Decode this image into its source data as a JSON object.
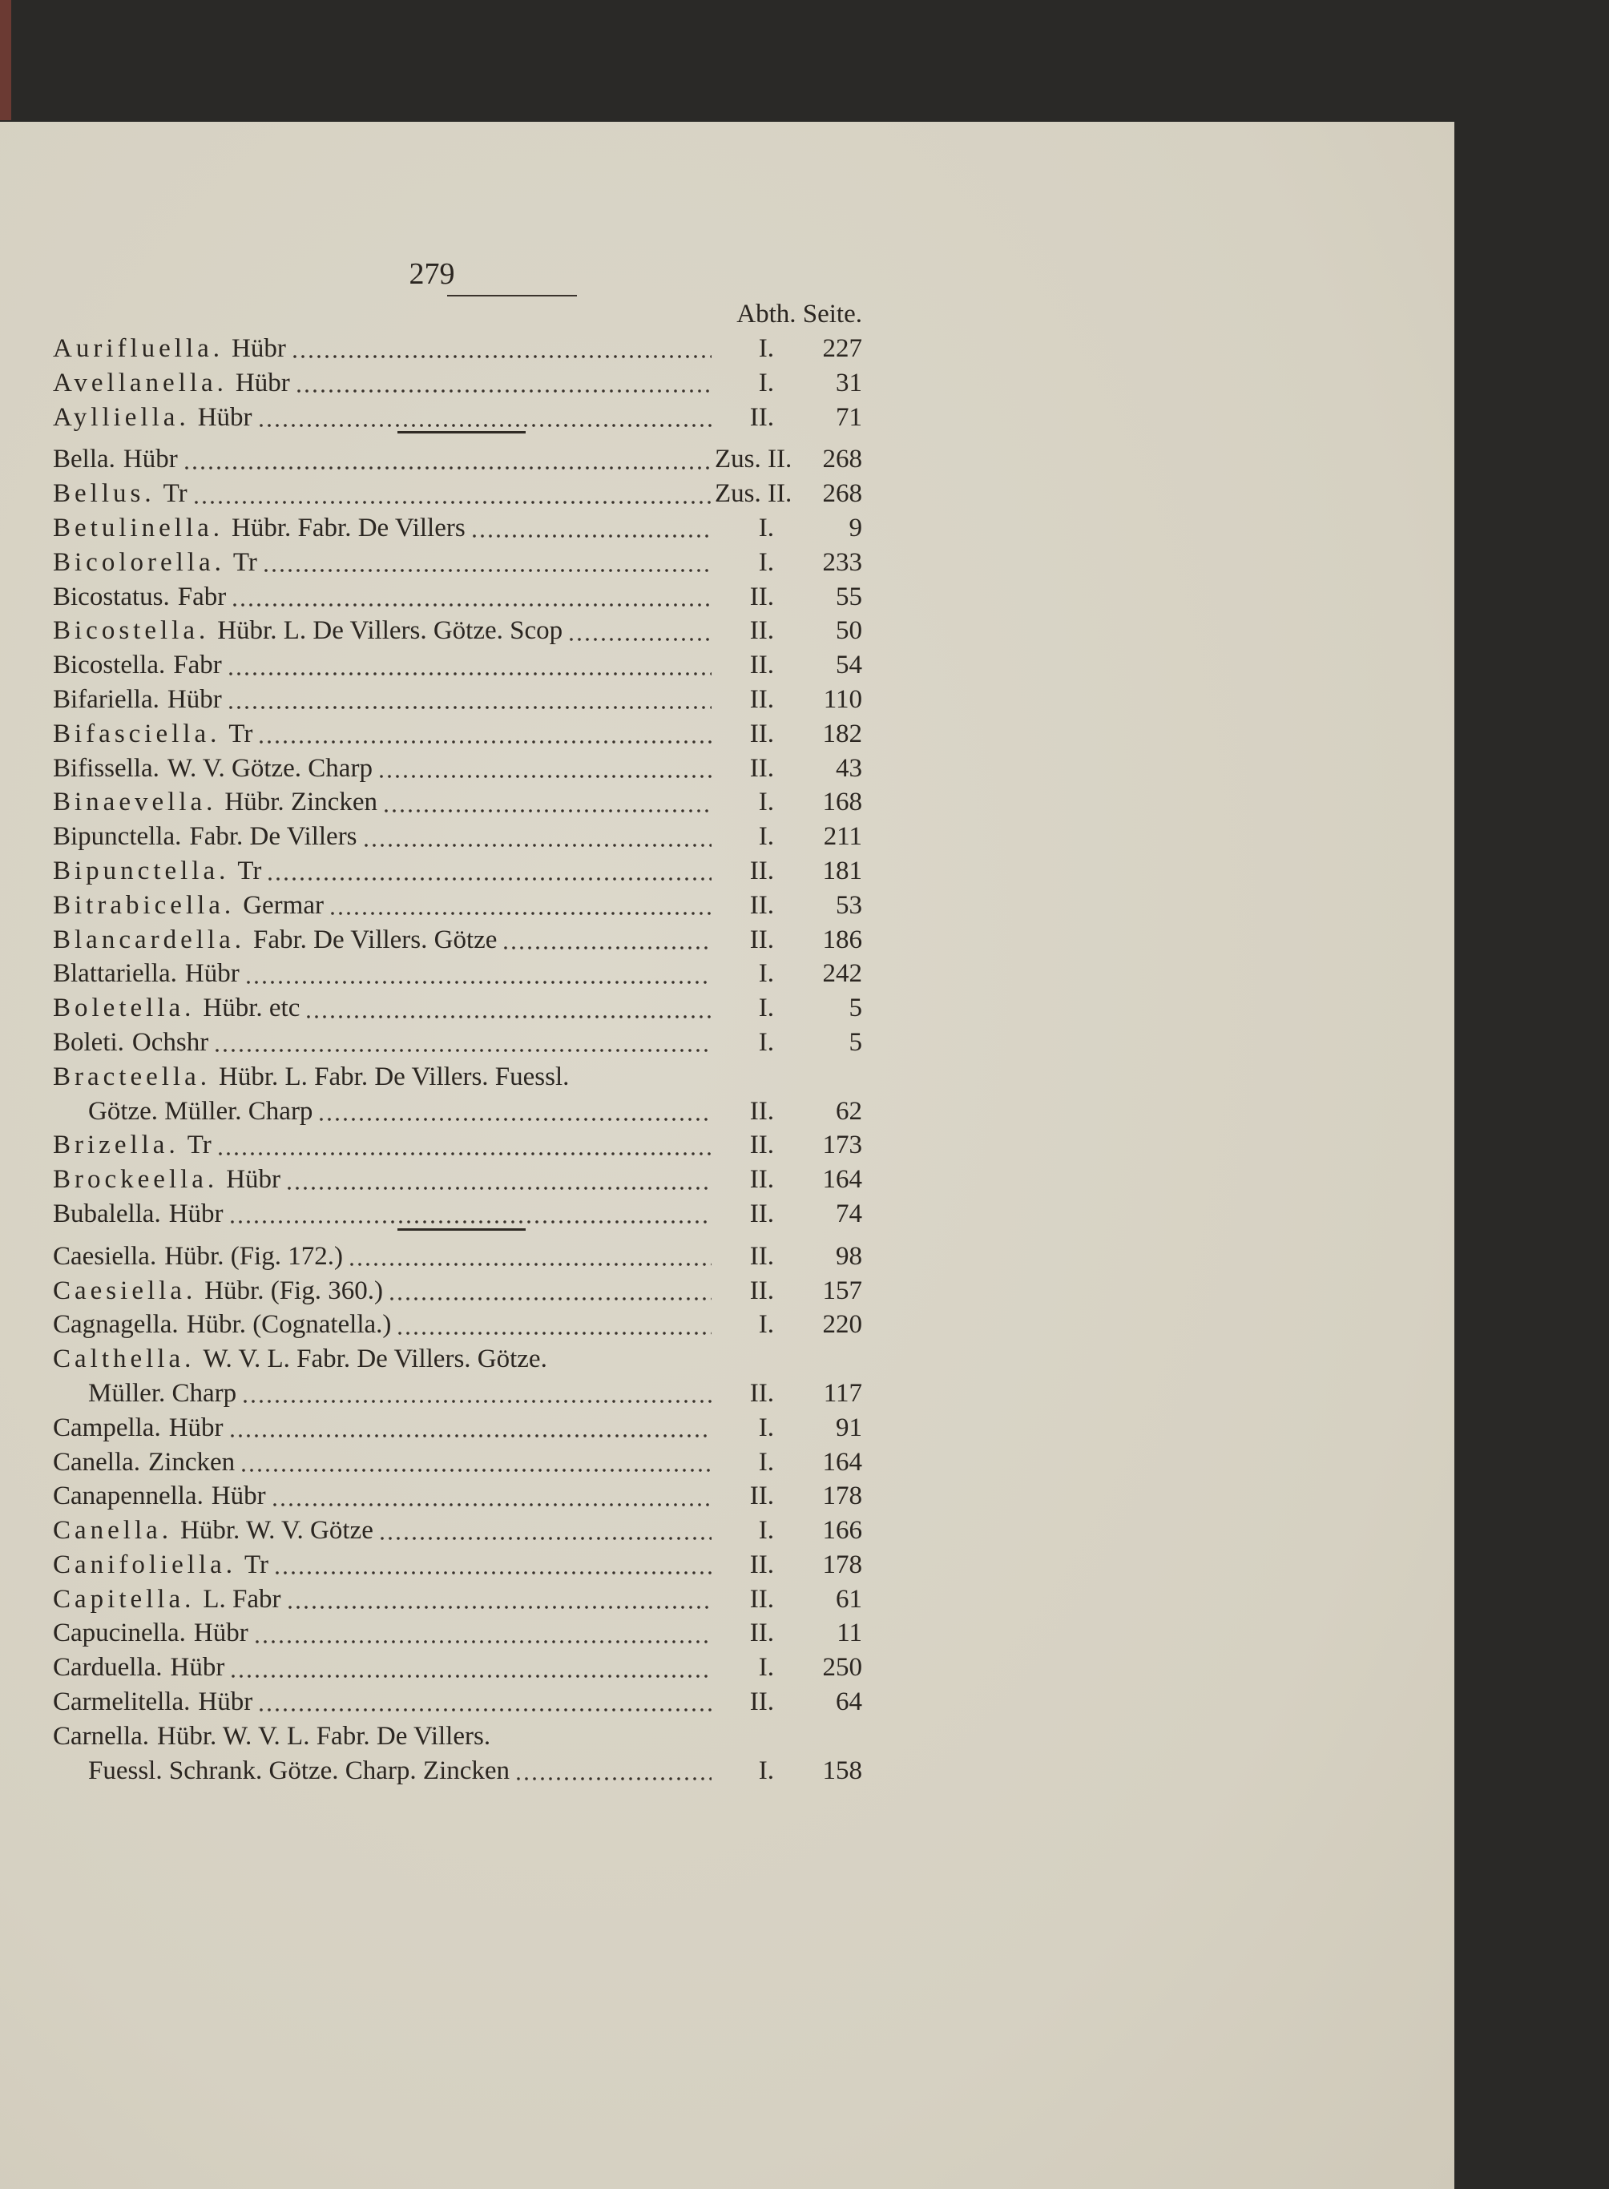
{
  "page_number": "279",
  "column_headers": {
    "abth": "Abth.",
    "seite": "Seite."
  },
  "sections": [
    {
      "entries": [
        {
          "name": "Aurifluella.",
          "spaced": true,
          "authors": "Hübr",
          "abth": "I.",
          "seite": "227"
        },
        {
          "name": "Avellanella.",
          "spaced": true,
          "authors": "Hübr",
          "abth": "I.",
          "seite": "31"
        },
        {
          "name": "Aylliella.",
          "spaced": true,
          "authors": "Hübr",
          "abth": "II.",
          "seite": "71"
        }
      ]
    },
    {
      "entries": [
        {
          "name": "Bella.",
          "spaced": false,
          "authors": "Hübr",
          "abth": "Zus. II.",
          "seite": "268"
        },
        {
          "name": "Bellus.",
          "spaced": true,
          "authors": "Tr",
          "abth": "Zus. II.",
          "seite": "268"
        },
        {
          "name": "Betulinella.",
          "spaced": true,
          "authors": "Hübr. Fabr. De Villers",
          "abth": "I.",
          "seite": "9"
        },
        {
          "name": "Bicolorella.",
          "spaced": true,
          "authors": "Tr",
          "abth": "I.",
          "seite": "233"
        },
        {
          "name": "Bicostatus.",
          "spaced": false,
          "authors": "Fabr",
          "abth": "II.",
          "seite": "55"
        },
        {
          "name": "Bicostella.",
          "spaced": true,
          "authors": "Hübr. L. De Villers. Götze. Scop",
          "abth": "II.",
          "seite": "50"
        },
        {
          "name": "Bicostella.",
          "spaced": false,
          "authors": "Fabr",
          "abth": "II.",
          "seite": "54"
        },
        {
          "name": "Bifariella.",
          "spaced": false,
          "authors": "Hübr",
          "abth": "II.",
          "seite": "110"
        },
        {
          "name": "Bifasciella.",
          "spaced": true,
          "authors": "Tr",
          "abth": "II.",
          "seite": "182"
        },
        {
          "name": "Bifissella.",
          "spaced": false,
          "authors": "W. V. Götze. Charp",
          "abth": "II.",
          "seite": "43"
        },
        {
          "name": "Binaevella.",
          "spaced": true,
          "authors": "Hübr. Zincken",
          "abth": "I.",
          "seite": "168"
        },
        {
          "name": "Bipunctella.",
          "spaced": false,
          "authors": "Fabr. De Villers",
          "abth": "I.",
          "seite": "211"
        },
        {
          "name": "Bipunctella.",
          "spaced": true,
          "authors": "Tr",
          "abth": "II.",
          "seite": "181"
        },
        {
          "name": "Bitrabicella.",
          "spaced": true,
          "authors": "Germar",
          "abth": "II.",
          "seite": "53"
        },
        {
          "name": "Blancardella.",
          "spaced": true,
          "authors": "Fabr. De Villers. Götze",
          "abth": "II.",
          "seite": "186"
        },
        {
          "name": "Blattariella.",
          "spaced": false,
          "authors": "Hübr",
          "abth": "I.",
          "seite": "242"
        },
        {
          "name": "Boletella.",
          "spaced": true,
          "authors": "Hübr. etc",
          "abth": "I.",
          "seite": "5"
        },
        {
          "name": "Boleti.",
          "spaced": false,
          "authors": "Ochshr",
          "abth": "I.",
          "seite": "5"
        },
        {
          "name": "Bracteella.",
          "spaced": true,
          "authors": "Hübr. L. Fabr. De Villers. Fuessl.",
          "cont": "Götze. Müller. Charp",
          "abth": "II.",
          "seite": "62"
        },
        {
          "name": "Brizella.",
          "spaced": true,
          "authors": "Tr",
          "abth": "II.",
          "seite": "173"
        },
        {
          "name": "Brockeella.",
          "spaced": true,
          "authors": "Hübr",
          "abth": "II.",
          "seite": "164"
        },
        {
          "name": "Bubalella.",
          "spaced": false,
          "authors": "Hübr",
          "abth": "II.",
          "seite": "74"
        }
      ]
    },
    {
      "entries": [
        {
          "name": "Caesiella.",
          "spaced": false,
          "authors": "Hübr. (Fig. 172.)",
          "abth": "II.",
          "seite": "98"
        },
        {
          "name": "Caesiella.",
          "spaced": true,
          "authors": "Hübr. (Fig. 360.)",
          "abth": "II.",
          "seite": "157"
        },
        {
          "name": "Cagnagella.",
          "spaced": false,
          "authors": "Hübr. (Cognatella.)",
          "abth": "I.",
          "seite": "220"
        },
        {
          "name": "Calthella.",
          "spaced": true,
          "authors": "W. V. L. Fabr. De Villers. Götze.",
          "cont": "Müller. Charp",
          "abth": "II.",
          "seite": "117"
        },
        {
          "name": "Campella.",
          "spaced": false,
          "authors": "Hübr",
          "abth": "I.",
          "seite": "91"
        },
        {
          "name": "Canella.",
          "spaced": false,
          "authors": "Zincken",
          "abth": "I.",
          "seite": "164"
        },
        {
          "name": "Canapennella.",
          "spaced": false,
          "authors": "Hübr",
          "abth": "II.",
          "seite": "178"
        },
        {
          "name": "Canella.",
          "spaced": true,
          "authors": "Hübr. W. V. Götze",
          "abth": "I.",
          "seite": "166"
        },
        {
          "name": "Canifoliella.",
          "spaced": true,
          "authors": "Tr",
          "abth": "II.",
          "seite": "178"
        },
        {
          "name": "Capitella.",
          "spaced": true,
          "authors": "L. Fabr",
          "abth": "II.",
          "seite": "61"
        },
        {
          "name": "Capucinella.",
          "spaced": false,
          "authors": "Hübr",
          "abth": "II.",
          "seite": "11"
        },
        {
          "name": "Carduella.",
          "spaced": false,
          "authors": "Hübr",
          "abth": "I.",
          "seite": "250"
        },
        {
          "name": "Carmelitella.",
          "spaced": false,
          "authors": "Hübr",
          "abth": "II.",
          "seite": "64"
        },
        {
          "name": "Carnella.",
          "spaced": false,
          "authors": "Hübr. W. V. L. Fabr. De Villers.",
          "cont": "Fuessl. Schrank. Götze. Charp. Zincken",
          "abth": "I.",
          "seite": "158"
        }
      ]
    }
  ]
}
